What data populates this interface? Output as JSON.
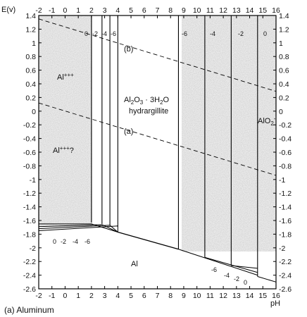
{
  "figure": {
    "caption": "(a) Aluminum",
    "x_axis_label": "pH",
    "y_axis_label": "E(v)",
    "x_ticks": [
      "-2",
      "-1",
      "0",
      "1",
      "2",
      "3",
      "4",
      "5",
      "6",
      "7",
      "8",
      "9",
      "10",
      "11",
      "12",
      "13",
      "14",
      "15",
      "16"
    ],
    "y_ticks": [
      "1.4",
      "1.2",
      "1",
      "0.8",
      "0.6",
      "0.4",
      "0.2",
      "0",
      "-0.2",
      "-0.4",
      "-0.6",
      "-0.8",
      "-1",
      "-1.2",
      "-1.4",
      "-1.6",
      "-1.8",
      "-2",
      "-2.2",
      "-2.4",
      "-2.6"
    ],
    "region_labels": {
      "al3": "Al+++",
      "al3_question": "Al+++?",
      "oxide_line1": "Al2O3 · 3H2O",
      "oxide_line2": "hydrargillite",
      "aluminate": "AlO2-",
      "metal": "Al"
    },
    "water_lines": {
      "upper": "(b)",
      "lower": "(a)"
    },
    "log_activity_labels": {
      "top_acid": [
        "0",
        "-2",
        "-4",
        "-6"
      ],
      "top_alkaline": [
        "-6",
        "-4",
        "-2",
        "0"
      ],
      "bottom_acid": [
        "0",
        "-2",
        "-4",
        "-6"
      ],
      "bottom_alkaline": [
        "-6",
        "-4",
        "-2",
        "0"
      ]
    }
  },
  "chart_data": {
    "type": "pourbaix",
    "xlabel": "pH",
    "ylabel": "E(v)",
    "xlim": [
      -2,
      16
    ],
    "ylim": [
      -2.6,
      1.4
    ],
    "water_line_b": {
      "x": [
        -2,
        16
      ],
      "y": [
        1.35,
        0.29
      ]
    },
    "water_line_a": {
      "x": [
        -2,
        16
      ],
      "y": [
        0.12,
        -0.94
      ]
    },
    "acid_boundaries_pH": [
      2.0,
      2.8,
      3.4,
      4.0
    ],
    "alkaline_boundaries_pH": [
      8.6,
      10.6,
      12.6,
      14.6
    ],
    "metal_line_acid_E": [
      -1.65,
      -1.69,
      -1.72,
      -1.75
    ],
    "metal_line_alkaline": [
      {
        "activity": "0",
        "points": [
          [
            8.6,
            -2.02
          ],
          [
            14.6,
            -2.4
          ]
        ]
      },
      {
        "activity": "-2",
        "points": [
          [
            10.6,
            -2.14
          ],
          [
            14.6,
            -2.36
          ]
        ]
      },
      {
        "activity": "-4",
        "points": [
          [
            12.6,
            -2.26
          ],
          [
            14.6,
            -2.3
          ]
        ]
      }
    ],
    "oxide_metal_line": {
      "x": [
        4.0,
        8.6
      ],
      "y": [
        -1.77,
        -2.02
      ]
    }
  }
}
